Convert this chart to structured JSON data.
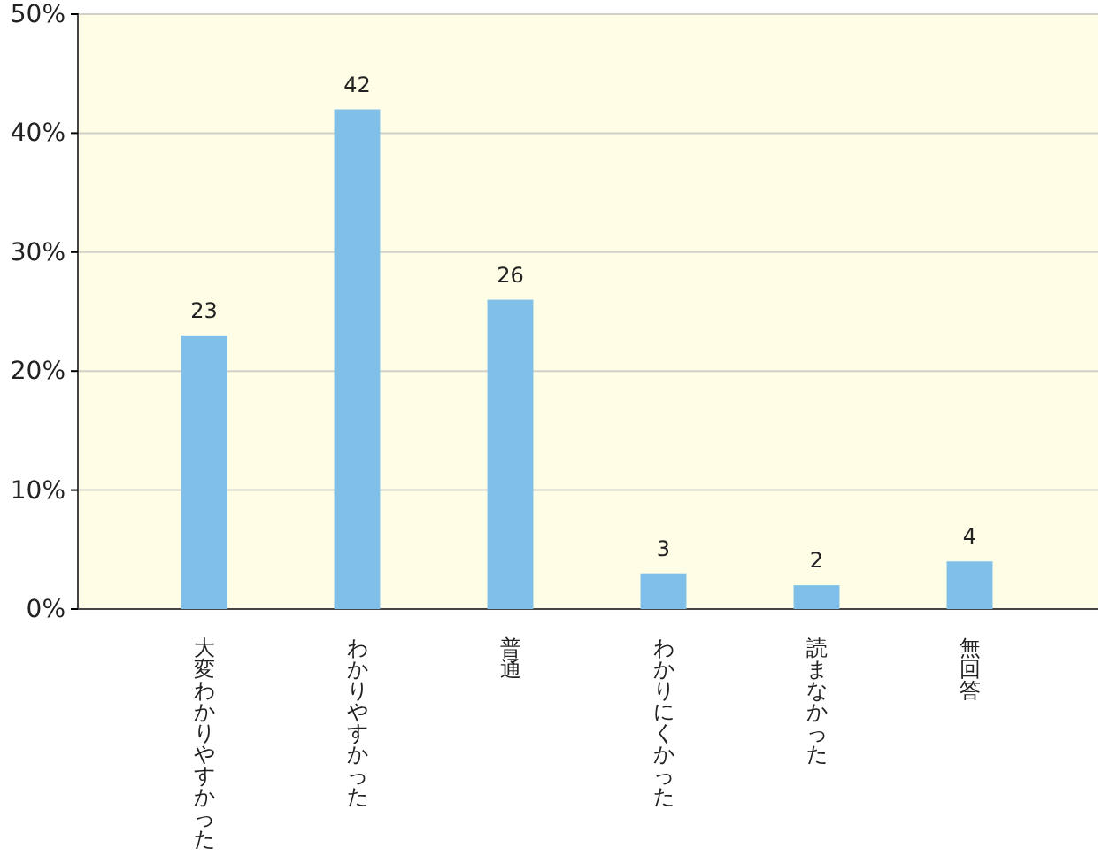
{
  "chart_data": {
    "type": "bar",
    "categories": [
      "大変わかりやすかった",
      "わかりやすかった",
      "普通",
      "わかりにくかった",
      "読まなかった",
      "無回答"
    ],
    "values": [
      23,
      42,
      26,
      3,
      2,
      4
    ],
    "color": "#80c0e8",
    "data_labels": true,
    "grid": "y",
    "ylim": [
      0,
      50
    ],
    "yticks": [
      {
        "value": 0,
        "label": "0%"
      },
      {
        "value": 10,
        "label": "10%"
      },
      {
        "value": 20,
        "label": "20%"
      },
      {
        "value": 30,
        "label": "30%"
      },
      {
        "value": 40,
        "label": "40%"
      },
      {
        "value": 50,
        "label": "50%"
      }
    ]
  }
}
